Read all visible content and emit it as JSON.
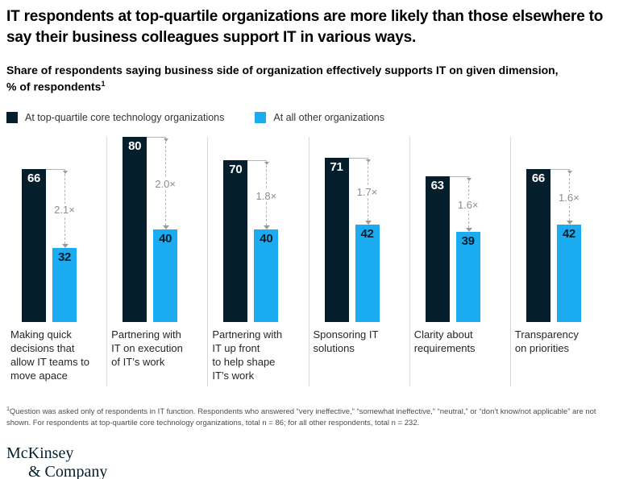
{
  "title": "IT respondents at top-quartile organizations are more likely than those elsewhere to say their business colleagues support IT in various ways.",
  "subtitle": {
    "line1": "Share of respondents saying business side of organization effectively supports IT on given dimension,",
    "line2": "% of respondents",
    "marker": "1"
  },
  "legend": {
    "items": [
      {
        "label": "At top-quartile core technology organizations",
        "color": "#051e2c"
      },
      {
        "label": "At all other organizations",
        "color": "#1aabf0"
      }
    ]
  },
  "chart_data": {
    "type": "bar",
    "categories": [
      "Making quick\ndecisions that\nallow IT teams to\nmove apace",
      "Partnering with\nIT on execution\nof IT’s work",
      "Partnering with\nIT up front\nto help shape\nIT’s work",
      "Sponsoring IT\nsolutions",
      "Clarity about\nrequirements",
      "Transparency\non priorities"
    ],
    "series": [
      {
        "name": "At top-quartile core technology organizations",
        "color": "#051e2c",
        "values": [
          66,
          80,
          70,
          71,
          63,
          66
        ]
      },
      {
        "name": "At all other organizations",
        "color": "#1aabf0",
        "values": [
          32,
          40,
          40,
          42,
          39,
          42
        ]
      }
    ],
    "multipliers": [
      "2.1×",
      "2.0×",
      "1.8×",
      "1.7×",
      "1.6×",
      "1.6×"
    ],
    "title": "Share of respondents saying business side of organization effectively supports IT on given dimension, % of respondents",
    "xlabel": "",
    "ylabel": "% of respondents",
    "ylim": [
      0,
      80
    ],
    "grid": false,
    "legend_position": "top"
  },
  "footnote": {
    "marker": "1",
    "text": "Question was asked only of respondents in IT function. Respondents who answered “very ineffective,” “somewhat ineffective,” “neutral,” or “don’t know/not applicable” are not shown. For respondents at top-quartile core technology organizations, total n = 86; for all other respondents, total n = 232."
  },
  "logo": {
    "line1": "McKinsey",
    "line2": "& Company"
  }
}
